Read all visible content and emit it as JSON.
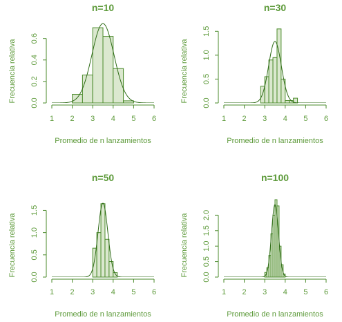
{
  "colors": {
    "accent": "#4a8a2a",
    "bar_fill": "#dbe8cf",
    "bar_stroke": "#4a8a2a",
    "curve": "#2e6b16",
    "text": "#5d9a3a"
  },
  "chart_data": [
    {
      "type": "bar",
      "title": "n=10",
      "xlabel": "Promedio de n lanzamientos",
      "ylabel": "Frecuencia relativa",
      "xlim": [
        1,
        6
      ],
      "ylim": [
        0,
        0.72
      ],
      "xticks": [
        "1",
        "2",
        "3",
        "4",
        "5",
        "6"
      ],
      "yticks": [
        "0.0",
        "0.2",
        "0.4",
        "0.6"
      ],
      "bin_width": 0.5,
      "bins": [
        {
          "x0": 2.0,
          "value": 0.08
        },
        {
          "x0": 2.5,
          "value": 0.26
        },
        {
          "x0": 3.0,
          "value": 0.7
        },
        {
          "x0": 3.5,
          "value": 0.62
        },
        {
          "x0": 4.0,
          "value": 0.32
        },
        {
          "x0": 4.5,
          "value": 0.02
        }
      ],
      "curve": {
        "mean": 3.5,
        "sd": 0.54
      }
    },
    {
      "type": "bar",
      "title": "n=30",
      "xlabel": "Promedio de n lanzamientos",
      "ylabel": "Frecuencia relativa",
      "xlim": [
        1,
        6
      ],
      "ylim": [
        0,
        1.62
      ],
      "xticks": [
        "1",
        "2",
        "3",
        "4",
        "5",
        "6"
      ],
      "yticks": [
        "0.0",
        "0.5",
        "1.0",
        "1.5"
      ],
      "bin_width": 0.2,
      "bins": [
        {
          "x0": 2.8,
          "value": 0.35
        },
        {
          "x0": 3.0,
          "value": 0.55
        },
        {
          "x0": 3.2,
          "value": 0.9
        },
        {
          "x0": 3.4,
          "value": 0.95
        },
        {
          "x0": 3.6,
          "value": 1.55
        },
        {
          "x0": 3.8,
          "value": 0.5
        },
        {
          "x0": 4.0,
          "value": 0.05
        },
        {
          "x0": 4.2,
          "value": 0.05
        },
        {
          "x0": 4.4,
          "value": 0.1
        }
      ],
      "curve": {
        "mean": 3.5,
        "sd": 0.31
      }
    },
    {
      "type": "bar",
      "title": "n=50",
      "xlabel": "Promedio de n lanzamientos",
      "ylabel": "Frecuencia relativa",
      "xlim": [
        1,
        6
      ],
      "ylim": [
        0,
        1.74
      ],
      "xticks": [
        "1",
        "2",
        "3",
        "4",
        "5",
        "6"
      ],
      "yticks": [
        "0.0",
        "0.5",
        "1.0",
        "1.5"
      ],
      "bin_width": 0.2,
      "bins": [
        {
          "x0": 3.0,
          "value": 0.65
        },
        {
          "x0": 3.2,
          "value": 1.0
        },
        {
          "x0": 3.4,
          "value": 1.65
        },
        {
          "x0": 3.6,
          "value": 0.85
        },
        {
          "x0": 3.8,
          "value": 0.35
        },
        {
          "x0": 4.0,
          "value": 0.1
        }
      ],
      "curve": {
        "mean": 3.5,
        "sd": 0.24
      }
    },
    {
      "type": "bar",
      "title": "n=100",
      "xlabel": "Promedio de n lanzamientos",
      "ylabel": "Frecuencia relativa",
      "xlim": [
        1,
        6
      ],
      "ylim": [
        0,
        2.5
      ],
      "xticks": [
        "1",
        "2",
        "3",
        "4",
        "5",
        "6"
      ],
      "yticks": [
        "0.0",
        "0.5",
        "1.0",
        "1.5",
        "2.0"
      ],
      "bin_width": 0.1,
      "bins": [
        {
          "x0": 3.0,
          "value": 0.15
        },
        {
          "x0": 3.1,
          "value": 0.3
        },
        {
          "x0": 3.2,
          "value": 0.7
        },
        {
          "x0": 3.3,
          "value": 1.4
        },
        {
          "x0": 3.4,
          "value": 2.0
        },
        {
          "x0": 3.5,
          "value": 2.5
        },
        {
          "x0": 3.6,
          "value": 2.3
        },
        {
          "x0": 3.7,
          "value": 1.0
        },
        {
          "x0": 3.8,
          "value": 0.4
        },
        {
          "x0": 3.9,
          "value": 0.1
        }
      ],
      "curve": {
        "mean": 3.5,
        "sd": 0.17
      }
    }
  ]
}
